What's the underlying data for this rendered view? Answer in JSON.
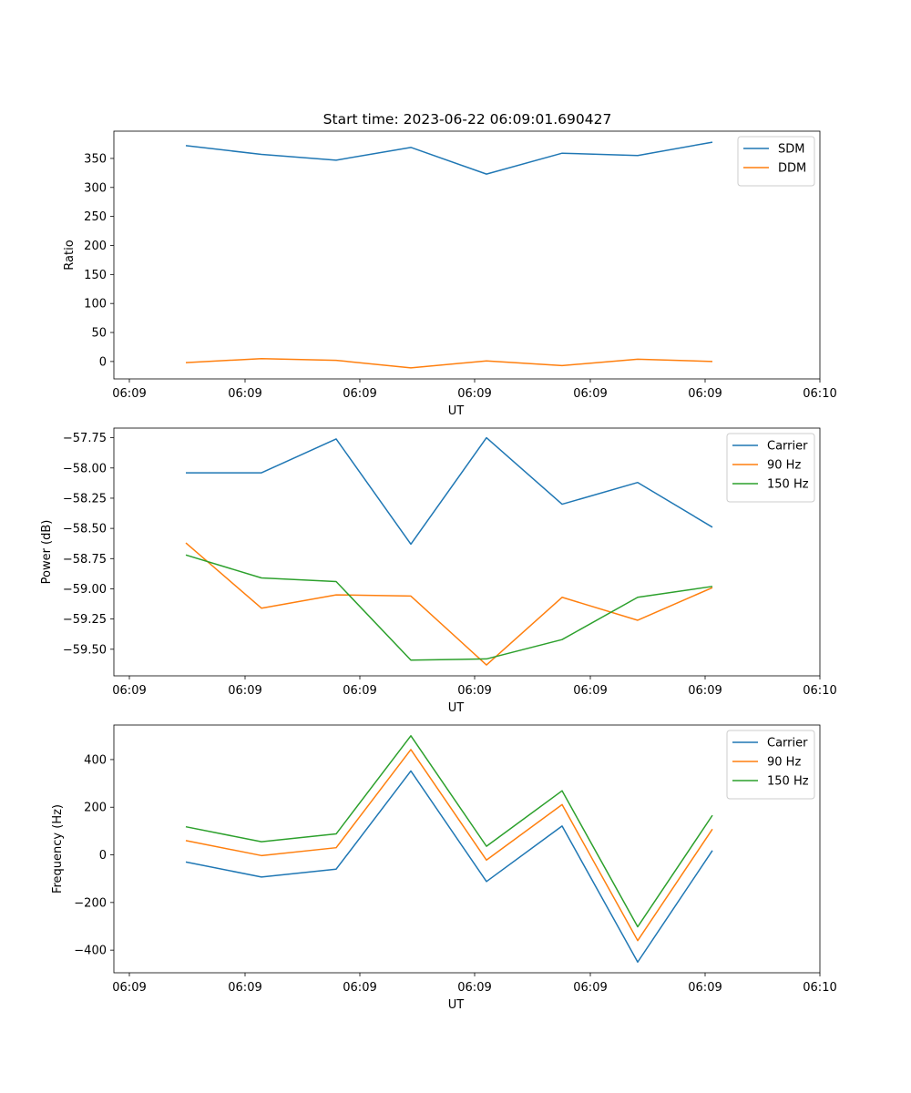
{
  "figure": {
    "title": "Start time: 2023-06-22 06:09:01.690427"
  },
  "chart_data": [
    {
      "type": "line",
      "xlabel": "UT",
      "ylabel": "Ratio",
      "x": [
        "06:09:01.690",
        "06:09:01.800",
        "06:09:01.910",
        "06:09:02.020",
        "06:09:02.130",
        "06:09:02.240",
        "06:09:02.350",
        "06:09:02.460"
      ],
      "xticks": [
        "06:09",
        "06:09",
        "06:09",
        "06:09",
        "06:09",
        "06:09",
        "06:10"
      ],
      "ylim": [
        -30,
        397
      ],
      "yticks": [
        0,
        50,
        100,
        150,
        200,
        250,
        300,
        350
      ],
      "legend_position": "upper-right",
      "series": [
        {
          "name": "SDM",
          "color": "#1f77b4",
          "values": [
            372,
            357,
            347,
            369,
            323,
            359,
            355,
            378
          ]
        },
        {
          "name": "DDM",
          "color": "#ff7f0e",
          "values": [
            -2,
            5,
            2,
            -11,
            1,
            -7,
            4,
            0
          ]
        }
      ]
    },
    {
      "type": "line",
      "xlabel": "UT",
      "ylabel": "Power (dB)",
      "x": [
        "06:09:01.690",
        "06:09:01.800",
        "06:09:01.910",
        "06:09:02.020",
        "06:09:02.130",
        "06:09:02.240",
        "06:09:02.350",
        "06:09:02.460"
      ],
      "xticks": [
        "06:09",
        "06:09",
        "06:09",
        "06:09",
        "06:09",
        "06:09",
        "06:10"
      ],
      "ylim": [
        -59.72,
        -57.67
      ],
      "yticks": [
        -57.75,
        -58.0,
        -58.25,
        -58.5,
        -58.75,
        -59.0,
        -59.25,
        -59.5
      ],
      "legend_position": "upper-right",
      "series": [
        {
          "name": "Carrier",
          "color": "#1f77b4",
          "values": [
            -58.04,
            -58.04,
            -57.76,
            -58.63,
            -57.75,
            -58.3,
            -58.12,
            -58.49
          ]
        },
        {
          "name": "90 Hz",
          "color": "#ff7f0e",
          "values": [
            -58.62,
            -59.16,
            -59.05,
            -59.06,
            -59.63,
            -59.07,
            -59.26,
            -58.99
          ]
        },
        {
          "name": "150 Hz",
          "color": "#2ca02c",
          "values": [
            -58.72,
            -58.91,
            -58.94,
            -59.59,
            -59.58,
            -59.42,
            -59.07,
            -58.98
          ]
        }
      ]
    },
    {
      "type": "line",
      "xlabel": "UT",
      "ylabel": "Frequency (Hz)",
      "x": [
        "06:09:01.690",
        "06:09:01.800",
        "06:09:01.910",
        "06:09:02.020",
        "06:09:02.130",
        "06:09:02.240",
        "06:09:02.350",
        "06:09:02.460"
      ],
      "xticks": [
        "06:09",
        "06:09",
        "06:09",
        "06:09",
        "06:09",
        "06:09",
        "06:10"
      ],
      "ylim": [
        -495,
        545
      ],
      "yticks": [
        400,
        200,
        0,
        -200,
        -400
      ],
      "legend_position": "upper-right",
      "series": [
        {
          "name": "Carrier",
          "color": "#1f77b4",
          "values": [
            -30,
            -93,
            -60,
            352,
            -112,
            121,
            -450,
            18
          ]
        },
        {
          "name": "90 Hz",
          "color": "#ff7f0e",
          "values": [
            60,
            -3,
            30,
            442,
            -22,
            211,
            -360,
            108
          ]
        },
        {
          "name": "150 Hz",
          "color": "#2ca02c",
          "values": [
            118,
            55,
            88,
            500,
            36,
            269,
            -302,
            166
          ]
        }
      ]
    }
  ]
}
